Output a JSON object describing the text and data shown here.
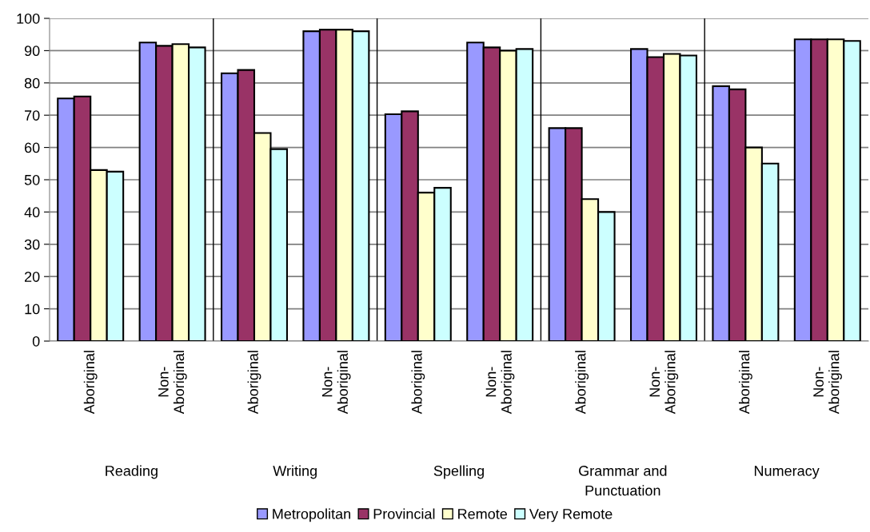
{
  "chart_data": {
    "type": "bar",
    "categories": [
      "Aboriginal",
      "Non-\nAboriginal",
      "Aboriginal",
      "Non-\nAboriginal",
      "Aboriginal",
      "Non-\nAboriginal",
      "Aboriginal",
      "Non-\nAboriginal",
      "Aboriginal",
      "Non-\nAboriginal"
    ],
    "annotations": [
      "Reading",
      "Writing",
      "Spelling",
      "Grammar and\nPunctuation",
      "Numeracy"
    ],
    "series": [
      {
        "name": "Metropolitan",
        "color": "#9999ff",
        "values": [
          75.2,
          92.5,
          83,
          96,
          70.3,
          92.5,
          66,
          90.5,
          79,
          93.5
        ]
      },
      {
        "name": "Provincial",
        "color": "#993366",
        "values": [
          75.8,
          91.5,
          84,
          96.5,
          71.2,
          91,
          66,
          88,
          78,
          93.5
        ]
      },
      {
        "name": "Remote",
        "color": "#ffffcc",
        "values": [
          53,
          92,
          64.5,
          96.5,
          46,
          90,
          44,
          89,
          60,
          93.5
        ]
      },
      {
        "name": "Very Remote",
        "color": "#ccffff",
        "values": [
          52.5,
          91,
          59.5,
          96,
          47.5,
          90.5,
          40,
          88.5,
          55,
          93
        ]
      }
    ],
    "ylim": [
      0,
      100
    ],
    "yticks": [
      0,
      10,
      20,
      30,
      40,
      50,
      60,
      70,
      80,
      90,
      100
    ],
    "grid": "y",
    "legend": "bottom"
  }
}
